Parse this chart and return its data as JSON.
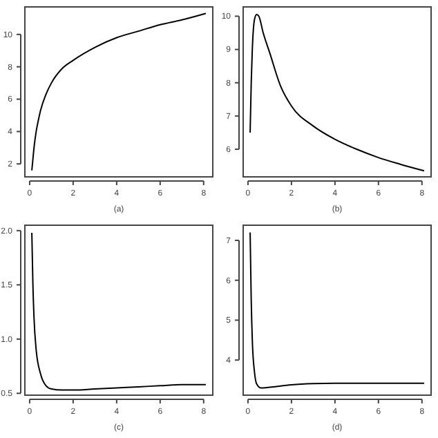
{
  "chart_data": [
    {
      "type": "line",
      "xlabel": "(a)",
      "x": [
        0.1,
        0.15,
        0.2,
        0.3,
        0.4,
        0.5,
        0.75,
        1,
        1.5,
        2,
        3,
        4,
        5,
        6,
        7,
        8.1
      ],
      "series": [
        {
          "color": "#000000",
          "values": [
            1.6,
            2.3,
            3.0,
            4.0,
            4.7,
            5.3,
            6.3,
            7.0,
            7.9,
            8.4,
            9.2,
            9.8,
            10.2,
            10.6,
            10.9,
            11.3
          ]
        }
      ],
      "xlim": [
        -0.22,
        8.42
      ],
      "ylim": [
        1.2,
        11.7
      ],
      "xticks": [
        0,
        2,
        4,
        6,
        8
      ],
      "yticks": [
        2,
        4,
        6,
        8,
        10
      ]
    },
    {
      "type": "line",
      "xlabel": "(b)",
      "x": [
        0.1,
        0.15,
        0.2,
        0.3,
        0.4,
        0.5,
        0.7,
        1,
        1.5,
        2,
        3,
        4,
        5,
        6,
        7,
        8.1
      ],
      "series": [
        {
          "color": "#000000",
          "values": [
            6.5,
            8.0,
            9.0,
            9.9,
            10.05,
            10.0,
            9.5,
            8.9,
            7.9,
            7.3,
            6.7,
            6.3,
            6.0,
            5.75,
            5.55,
            5.35
          ]
        }
      ],
      "xlim": [
        -0.22,
        8.42
      ],
      "ylim": [
        5.17,
        10.28
      ],
      "xticks": [
        0,
        2,
        4,
        6,
        8
      ],
      "yticks": [
        6,
        7,
        8,
        9,
        10
      ]
    },
    {
      "type": "line",
      "xlabel": "(c)",
      "x": [
        0.1,
        0.15,
        0.2,
        0.3,
        0.5,
        0.75,
        1,
        1.5,
        2,
        3,
        4,
        5,
        6,
        7,
        8.1
      ],
      "series": [
        {
          "color": "#000000",
          "values": [
            1.98,
            1.5,
            1.2,
            0.9,
            0.68,
            0.57,
            0.54,
            0.53,
            0.53,
            0.54,
            0.55,
            0.56,
            0.57,
            0.58,
            0.58
          ]
        }
      ],
      "xlim": [
        -0.22,
        8.42
      ],
      "ylim": [
        0.483,
        2.05
      ],
      "xticks": [
        0,
        2,
        4,
        6,
        8
      ],
      "yticks": [
        {
          "value": 0.5,
          "label": "0.5"
        },
        {
          "value": 1,
          "label": "1.0"
        },
        {
          "value": 1.5,
          "label": "1.5"
        },
        {
          "value": 2,
          "label": "2.0"
        }
      ]
    },
    {
      "type": "line",
      "xlabel": "(d)",
      "x": [
        0.1,
        0.15,
        0.2,
        0.3,
        0.4,
        0.6,
        1,
        2,
        3,
        4,
        6,
        8.1
      ],
      "series": [
        {
          "color": "#000000",
          "values": [
            7.2,
            5.5,
            4.5,
            3.7,
            3.4,
            3.3,
            3.32,
            3.38,
            3.41,
            3.42,
            3.42,
            3.42
          ]
        }
      ],
      "xlim": [
        -0.22,
        8.42
      ],
      "ylim": [
        3.12,
        7.38
      ],
      "xticks": [
        0,
        2,
        4,
        6,
        8
      ],
      "yticks": [
        4,
        5,
        6,
        7
      ]
    }
  ]
}
